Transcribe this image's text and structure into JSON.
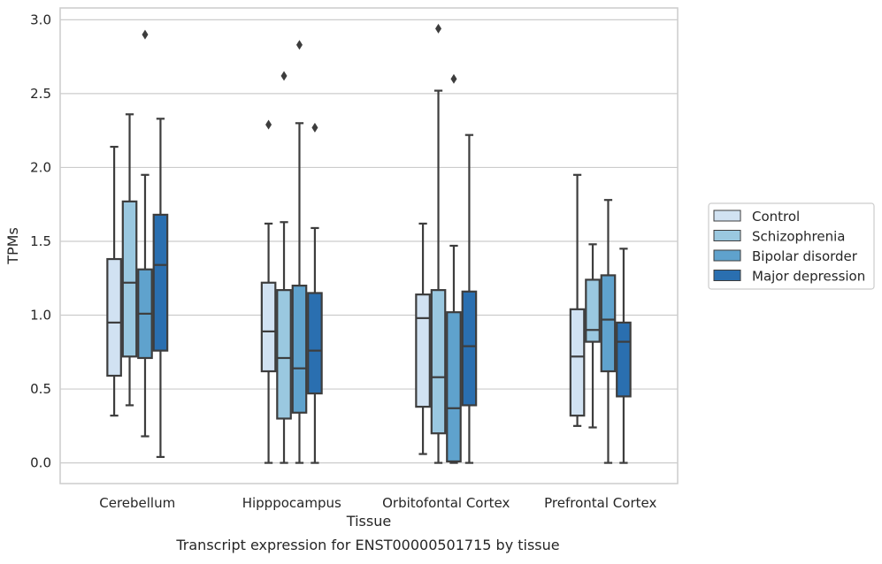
{
  "chart_data": {
    "type": "box",
    "caption": "Transcript expression for ENST00000501715 by tissue",
    "xlabel": "Tissue",
    "ylabel": "TPMs",
    "ylim": [
      -0.14,
      3.08
    ],
    "yticks": [
      0.0,
      0.5,
      1.0,
      1.5,
      2.0,
      2.5,
      3.0
    ],
    "ytick_labels": [
      "0.0",
      "0.5",
      "1.0",
      "1.5",
      "2.0",
      "2.5",
      "3.0"
    ],
    "grid": "horizontal",
    "legend_position": "right",
    "categories": [
      "Cerebellum",
      "Hipppocampus",
      "Orbitofontal Cortex",
      "Prefrontal Cortex"
    ],
    "series": [
      {
        "name": "Control",
        "color": "#d1e2f2",
        "boxes": [
          {
            "whisker_low": 0.32,
            "q1": 0.59,
            "median": 0.95,
            "q3": 1.38,
            "whisker_high": 2.14,
            "outliers": []
          },
          {
            "whisker_low": 0.0,
            "q1": 0.62,
            "median": 0.89,
            "q3": 1.22,
            "whisker_high": 1.62,
            "outliers": [
              2.29
            ]
          },
          {
            "whisker_low": 0.06,
            "q1": 0.38,
            "median": 0.98,
            "q3": 1.14,
            "whisker_high": 1.62,
            "outliers": []
          },
          {
            "whisker_low": 0.25,
            "q1": 0.32,
            "median": 0.72,
            "q3": 1.04,
            "whisker_high": 1.95,
            "outliers": []
          }
        ]
      },
      {
        "name": "Schizophrenia",
        "color": "#9ac8e0",
        "boxes": [
          {
            "whisker_low": 0.39,
            "q1": 0.72,
            "median": 1.22,
            "q3": 1.77,
            "whisker_high": 2.36,
            "outliers": []
          },
          {
            "whisker_low": 0.0,
            "q1": 0.3,
            "median": 0.71,
            "q3": 1.17,
            "whisker_high": 1.63,
            "outliers": [
              2.62
            ]
          },
          {
            "whisker_low": 0.0,
            "q1": 0.2,
            "median": 0.58,
            "q3": 1.17,
            "whisker_high": 2.52,
            "outliers": [
              2.94
            ]
          },
          {
            "whisker_low": 0.24,
            "q1": 0.82,
            "median": 0.9,
            "q3": 1.24,
            "whisker_high": 1.48,
            "outliers": []
          }
        ]
      },
      {
        "name": "Bipolar disorder",
        "color": "#5fa2cd",
        "boxes": [
          {
            "whisker_low": 0.18,
            "q1": 0.71,
            "median": 1.01,
            "q3": 1.31,
            "whisker_high": 1.95,
            "outliers": [
              2.9
            ]
          },
          {
            "whisker_low": 0.0,
            "q1": 0.34,
            "median": 0.64,
            "q3": 1.2,
            "whisker_high": 2.3,
            "outliers": [
              2.83
            ]
          },
          {
            "whisker_low": 0.0,
            "q1": 0.01,
            "median": 0.37,
            "q3": 1.02,
            "whisker_high": 1.47,
            "outliers": [
              2.6
            ]
          },
          {
            "whisker_low": 0.0,
            "q1": 0.62,
            "median": 0.97,
            "q3": 1.27,
            "whisker_high": 1.78,
            "outliers": []
          }
        ]
      },
      {
        "name": "Major depression",
        "color": "#2a6fb0",
        "boxes": [
          {
            "whisker_low": 0.04,
            "q1": 0.76,
            "median": 1.34,
            "q3": 1.68,
            "whisker_high": 2.33,
            "outliers": []
          },
          {
            "whisker_low": 0.0,
            "q1": 0.47,
            "median": 0.76,
            "q3": 1.15,
            "whisker_high": 1.59,
            "outliers": [
              2.27
            ]
          },
          {
            "whisker_low": 0.0,
            "q1": 0.39,
            "median": 0.79,
            "q3": 1.16,
            "whisker_high": 2.22,
            "outliers": []
          },
          {
            "whisker_low": 0.0,
            "q1": 0.45,
            "median": 0.82,
            "q3": 0.95,
            "whisker_high": 1.45,
            "outliers": []
          }
        ]
      }
    ]
  },
  "colors": {
    "box_edge": "#3d3d3d",
    "grid": "#cccccc",
    "frame": "#cccccc",
    "text": "#262626"
  }
}
